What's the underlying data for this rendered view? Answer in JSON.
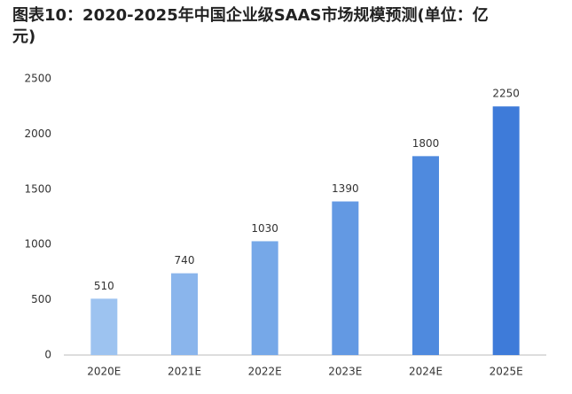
{
  "chart_data": {
    "type": "bar",
    "title": "图表10：2020-2025年中国企业级SAAS市场规模预测(单位：亿元)",
    "categories": [
      "2020E",
      "2021E",
      "2022E",
      "2023E",
      "2024E",
      "2025E"
    ],
    "values": [
      510,
      740,
      1030,
      1390,
      1800,
      2250
    ],
    "colors": [
      "#9dc3f0",
      "#8ab5ec",
      "#76a8e8",
      "#6399e3",
      "#4f8ade",
      "#3e7bd9"
    ],
    "ylim": [
      0,
      2500
    ],
    "yticks": [
      0,
      500,
      1000,
      1500,
      2000,
      2500
    ],
    "grid": false
  }
}
